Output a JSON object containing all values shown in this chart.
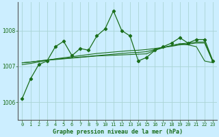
{
  "title": "Graphe pression niveau de la mer (hPa)",
  "bg_color": "#cceeff",
  "grid_color": "#aad4d4",
  "line_color": "#1a6e1a",
  "x_ticks": [
    0,
    1,
    2,
    3,
    4,
    5,
    6,
    7,
    8,
    9,
    10,
    11,
    12,
    13,
    14,
    15,
    16,
    17,
    18,
    19,
    20,
    21,
    22,
    23
  ],
  "y_ticks": [
    1006,
    1007,
    1008
  ],
  "ylim": [
    1005.5,
    1008.8
  ],
  "xlim": [
    -0.5,
    23.5
  ],
  "series1": [
    1006.1,
    1006.65,
    1007.05,
    1007.15,
    1007.55,
    1007.7,
    1007.3,
    1007.5,
    1007.45,
    1007.85,
    1008.05,
    1008.55,
    1008.0,
    1007.85,
    1007.15,
    1007.25,
    1007.45,
    1007.55,
    1007.65,
    1007.8,
    1007.65,
    1007.75,
    1007.75,
    1007.15
  ],
  "series2": [
    1007.1,
    1007.12,
    1007.15,
    1007.17,
    1007.19,
    1007.21,
    1007.23,
    1007.25,
    1007.27,
    1007.29,
    1007.3,
    1007.31,
    1007.32,
    1007.33,
    1007.34,
    1007.35,
    1007.45,
    1007.52,
    1007.58,
    1007.63,
    1007.6,
    1007.55,
    1007.15,
    1007.1
  ],
  "series3": [
    1007.1,
    1007.12,
    1007.15,
    1007.18,
    1007.2,
    1007.22,
    1007.24,
    1007.26,
    1007.28,
    1007.3,
    1007.32,
    1007.34,
    1007.36,
    1007.38,
    1007.39,
    1007.41,
    1007.47,
    1007.53,
    1007.58,
    1007.63,
    1007.65,
    1007.68,
    1007.68,
    1007.12
  ],
  "series4": [
    1007.05,
    1007.08,
    1007.12,
    1007.17,
    1007.21,
    1007.24,
    1007.27,
    1007.3,
    1007.33,
    1007.36,
    1007.38,
    1007.4,
    1007.42,
    1007.44,
    1007.45,
    1007.47,
    1007.5,
    1007.53,
    1007.56,
    1007.6,
    1007.62,
    1007.65,
    1007.65,
    1007.12
  ]
}
